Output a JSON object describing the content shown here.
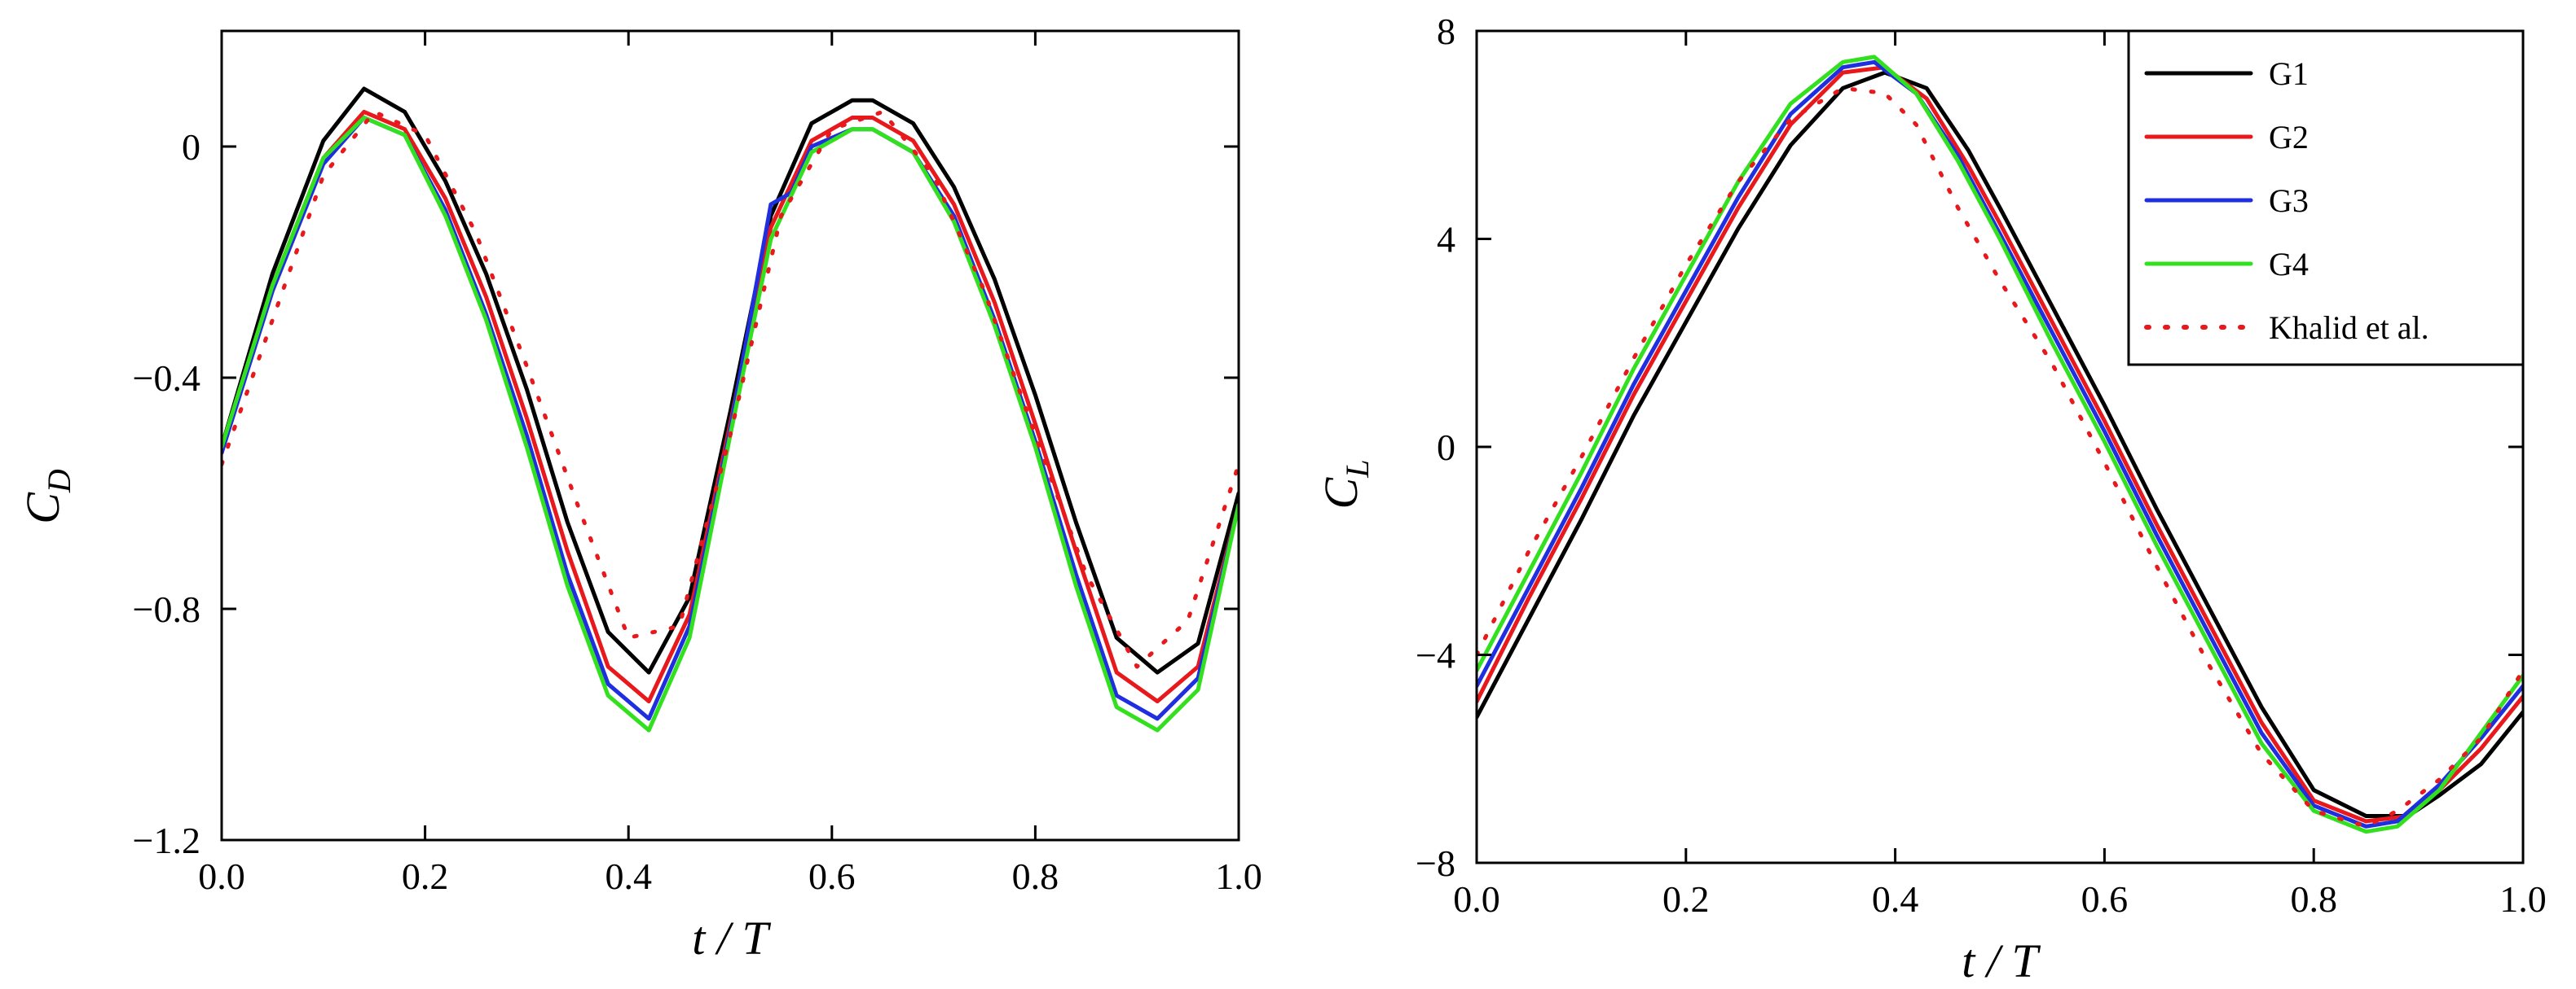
{
  "chart_data": [
    {
      "type": "line",
      "id": "drag",
      "xlabel": "t / T",
      "ylabel_main": "C",
      "ylabel_sub": "D",
      "xlim": [
        0.0,
        1.0
      ],
      "ylim": [
        -1.2,
        0.2
      ],
      "xticks": [
        0.0,
        0.2,
        0.4,
        0.6,
        0.8,
        1.0
      ],
      "xtick_labels": [
        "0.0",
        "0.2",
        "0.4",
        "0.6",
        "0.8",
        "1.0"
      ],
      "yticks": [
        0.0,
        -0.4,
        -0.8,
        -1.2
      ],
      "ytick_labels": [
        "0",
        "−0.4",
        "−0.8",
        "−1.2"
      ],
      "series": [
        {
          "name": "G1",
          "color": "#000000",
          "dash": "solid",
          "x": [
            0,
            0.05,
            0.1,
            0.14,
            0.18,
            0.22,
            0.26,
            0.3,
            0.34,
            0.38,
            0.42,
            0.46,
            0.5,
            0.54,
            0.58,
            0.62,
            0.64,
            0.68,
            0.72,
            0.76,
            0.8,
            0.84,
            0.88,
            0.92,
            0.96,
            1.0
          ],
          "y": [
            -0.52,
            -0.22,
            0.01,
            0.1,
            0.06,
            -0.06,
            -0.22,
            -0.42,
            -0.65,
            -0.84,
            -0.91,
            -0.78,
            -0.46,
            -0.12,
            0.04,
            0.08,
            0.08,
            0.04,
            -0.07,
            -0.23,
            -0.43,
            -0.65,
            -0.85,
            -0.91,
            -0.86,
            -0.6
          ]
        },
        {
          "name": "G2",
          "color": "#e8191c",
          "dash": "solid",
          "x": [
            0,
            0.05,
            0.1,
            0.14,
            0.18,
            0.22,
            0.26,
            0.3,
            0.34,
            0.38,
            0.42,
            0.46,
            0.5,
            0.54,
            0.58,
            0.62,
            0.64,
            0.68,
            0.72,
            0.76,
            0.8,
            0.84,
            0.88,
            0.92,
            0.96,
            1.0
          ],
          "y": [
            -0.53,
            -0.24,
            -0.02,
            0.06,
            0.03,
            -0.09,
            -0.26,
            -0.47,
            -0.7,
            -0.9,
            -0.96,
            -0.81,
            -0.48,
            -0.14,
            0.01,
            0.05,
            0.05,
            0.01,
            -0.1,
            -0.27,
            -0.48,
            -0.7,
            -0.91,
            -0.96,
            -0.9,
            -0.62
          ]
        },
        {
          "name": "G3",
          "color": "#1f2fe0",
          "dash": "solid",
          "x": [
            0,
            0.05,
            0.1,
            0.14,
            0.18,
            0.22,
            0.26,
            0.3,
            0.34,
            0.38,
            0.42,
            0.46,
            0.5,
            0.54,
            0.56,
            0.58,
            0.62,
            0.64,
            0.68,
            0.72,
            0.76,
            0.8,
            0.84,
            0.88,
            0.92,
            0.96,
            1.0
          ],
          "y": [
            -0.53,
            -0.25,
            -0.03,
            0.05,
            0.02,
            -0.11,
            -0.29,
            -0.5,
            -0.74,
            -0.93,
            -0.99,
            -0.83,
            -0.49,
            -0.1,
            -0.08,
            0.0,
            0.03,
            0.03,
            -0.01,
            -0.12,
            -0.3,
            -0.51,
            -0.74,
            -0.95,
            -0.99,
            -0.92,
            -0.62
          ]
        },
        {
          "name": "G4",
          "color": "#33e01f",
          "dash": "solid",
          "x": [
            0,
            0.05,
            0.1,
            0.14,
            0.18,
            0.22,
            0.26,
            0.3,
            0.34,
            0.38,
            0.42,
            0.46,
            0.5,
            0.54,
            0.58,
            0.62,
            0.64,
            0.68,
            0.72,
            0.76,
            0.8,
            0.84,
            0.88,
            0.92,
            0.96,
            1.0
          ],
          "y": [
            -0.52,
            -0.24,
            -0.02,
            0.05,
            0.02,
            -0.12,
            -0.3,
            -0.52,
            -0.76,
            -0.95,
            -1.01,
            -0.85,
            -0.5,
            -0.16,
            -0.01,
            0.03,
            0.03,
            -0.01,
            -0.13,
            -0.31,
            -0.52,
            -0.76,
            -0.97,
            -1.01,
            -0.94,
            -0.62
          ]
        },
        {
          "name": "Khalid et al.",
          "color": "#e8191c",
          "dash": "dotted",
          "x": [
            0,
            0.05,
            0.1,
            0.15,
            0.2,
            0.25,
            0.3,
            0.35,
            0.4,
            0.45,
            0.5,
            0.55,
            0.6,
            0.65,
            0.7,
            0.75,
            0.8,
            0.85,
            0.9,
            0.95,
            1.0
          ],
          "y": [
            -0.55,
            -0.3,
            -0.05,
            0.06,
            0.02,
            -0.15,
            -0.38,
            -0.62,
            -0.85,
            -0.83,
            -0.5,
            -0.12,
            0.03,
            0.06,
            -0.05,
            -0.25,
            -0.5,
            -0.74,
            -0.9,
            -0.82,
            -0.55
          ]
        }
      ]
    },
    {
      "type": "line",
      "id": "lift",
      "xlabel": "t / T",
      "ylabel_main": "C",
      "ylabel_sub": "L",
      "xlim": [
        0.0,
        1.0
      ],
      "ylim": [
        -8,
        8
      ],
      "xticks": [
        0.0,
        0.2,
        0.4,
        0.6,
        0.8,
        1.0
      ],
      "xtick_labels": [
        "0.0",
        "0.2",
        "0.4",
        "0.6",
        "0.8",
        "1.0"
      ],
      "yticks": [
        8,
        4,
        0,
        -4,
        -8
      ],
      "ytick_labels": [
        "8",
        "4",
        "0",
        "−4",
        "−8"
      ],
      "legend": {
        "position": "top-right",
        "entries": [
          "G1",
          "G2",
          "G3",
          "G4",
          "Khalid et al."
        ]
      },
      "series": [
        {
          "name": "G1",
          "color": "#000000",
          "dash": "solid",
          "x": [
            0,
            0.05,
            0.1,
            0.15,
            0.2,
            0.25,
            0.3,
            0.35,
            0.39,
            0.43,
            0.47,
            0.5,
            0.55,
            0.6,
            0.65,
            0.7,
            0.75,
            0.8,
            0.85,
            0.89,
            0.92,
            0.96,
            1.0
          ],
          "y": [
            -5.2,
            -3.3,
            -1.4,
            0.6,
            2.4,
            4.2,
            5.8,
            6.9,
            7.2,
            6.9,
            5.7,
            4.6,
            2.7,
            0.8,
            -1.2,
            -3.1,
            -5.0,
            -6.6,
            -7.1,
            -7.1,
            -6.7,
            -6.1,
            -5.1
          ]
        },
        {
          "name": "G2",
          "color": "#e8191c",
          "dash": "solid",
          "x": [
            0,
            0.05,
            0.1,
            0.15,
            0.2,
            0.25,
            0.3,
            0.35,
            0.39,
            0.43,
            0.47,
            0.5,
            0.55,
            0.6,
            0.65,
            0.7,
            0.75,
            0.8,
            0.85,
            0.89,
            0.92,
            0.96,
            1.0
          ],
          "y": [
            -4.9,
            -2.9,
            -1.0,
            1.0,
            2.8,
            4.6,
            6.2,
            7.2,
            7.3,
            6.7,
            5.4,
            4.3,
            2.4,
            0.5,
            -1.5,
            -3.4,
            -5.3,
            -6.8,
            -7.2,
            -7.1,
            -6.6,
            -5.8,
            -4.8
          ]
        },
        {
          "name": "G3",
          "color": "#1f2fe0",
          "dash": "solid",
          "x": [
            0,
            0.05,
            0.1,
            0.15,
            0.2,
            0.25,
            0.3,
            0.35,
            0.38,
            0.42,
            0.46,
            0.5,
            0.55,
            0.6,
            0.65,
            0.7,
            0.75,
            0.8,
            0.85,
            0.88,
            0.92,
            0.96,
            1.0
          ],
          "y": [
            -4.6,
            -2.7,
            -0.8,
            1.2,
            3.0,
            4.8,
            6.4,
            7.3,
            7.4,
            6.8,
            5.6,
            4.1,
            2.2,
            0.3,
            -1.7,
            -3.6,
            -5.5,
            -6.9,
            -7.3,
            -7.2,
            -6.5,
            -5.6,
            -4.6
          ]
        },
        {
          "name": "G4",
          "color": "#33e01f",
          "dash": "solid",
          "x": [
            0,
            0.05,
            0.1,
            0.15,
            0.2,
            0.25,
            0.3,
            0.35,
            0.38,
            0.42,
            0.46,
            0.5,
            0.55,
            0.6,
            0.65,
            0.7,
            0.75,
            0.8,
            0.85,
            0.88,
            0.92,
            0.96,
            1.0
          ],
          "y": [
            -4.3,
            -2.4,
            -0.5,
            1.5,
            3.3,
            5.1,
            6.6,
            7.4,
            7.5,
            6.8,
            5.5,
            4.0,
            2.0,
            0.1,
            -1.9,
            -3.8,
            -5.7,
            -7.0,
            -7.4,
            -7.3,
            -6.6,
            -5.5,
            -4.4
          ]
        },
        {
          "name": "Khalid et al.",
          "color": "#e8191c",
          "dash": "dotted",
          "x": [
            0,
            0.05,
            0.1,
            0.15,
            0.2,
            0.25,
            0.3,
            0.35,
            0.39,
            0.42,
            0.46,
            0.5,
            0.55,
            0.6,
            0.65,
            0.7,
            0.75,
            0.8,
            0.85,
            0.88,
            0.92,
            0.96,
            1.0
          ],
          "y": [
            -4.0,
            -2.0,
            -0.2,
            1.7,
            3.5,
            5.1,
            6.3,
            6.9,
            6.8,
            6.2,
            4.6,
            3.2,
            1.6,
            -0.3,
            -2.3,
            -4.2,
            -5.9,
            -7.0,
            -7.3,
            -7.0,
            -6.4,
            -5.6,
            -4.3
          ]
        }
      ]
    }
  ]
}
